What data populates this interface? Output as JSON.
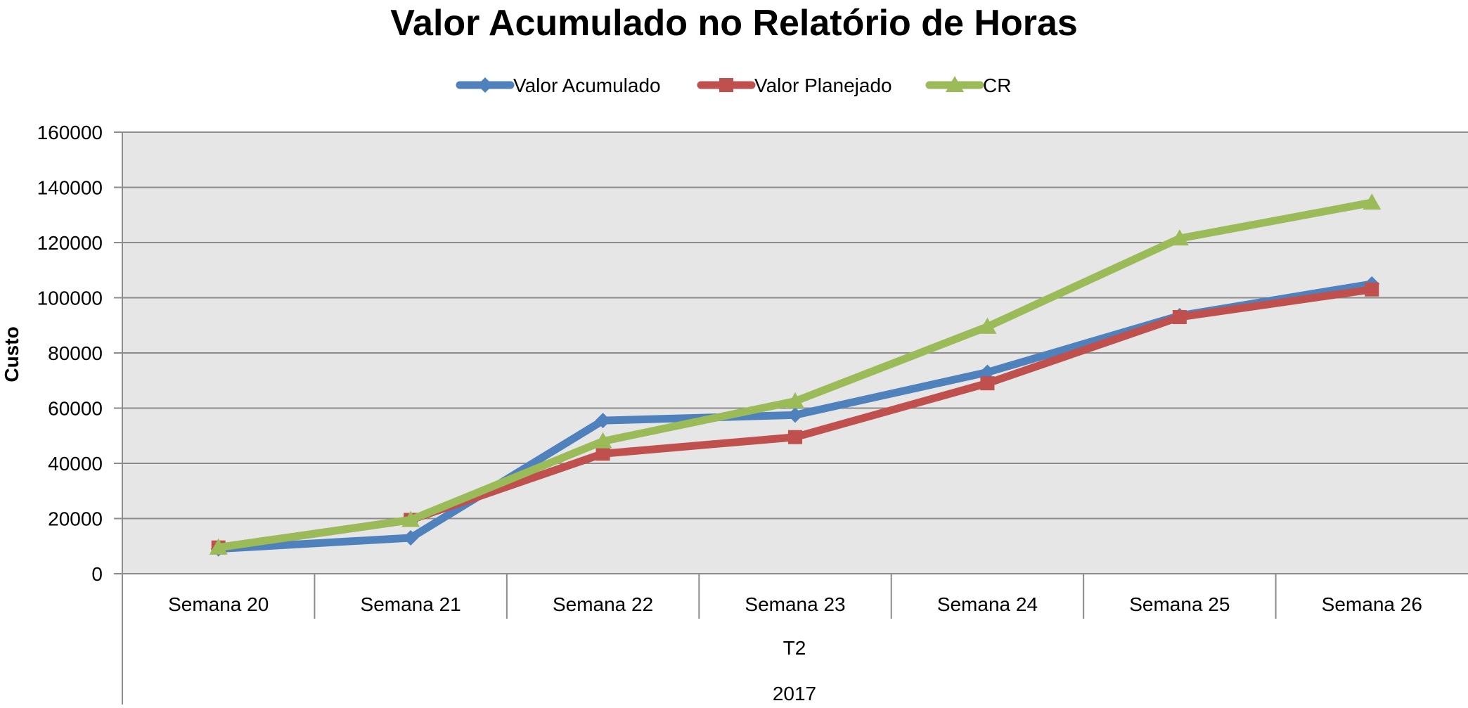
{
  "chart_data": {
    "type": "line",
    "title": "Valor Acumulado no Relatório de Horas",
    "xlabel": "",
    "ylabel": "Custo",
    "ylim": [
      0,
      160000
    ],
    "yticks": [
      "0",
      "20000",
      "40000",
      "60000",
      "80000",
      "100000",
      "120000",
      "140000",
      "160000"
    ],
    "grid": true,
    "legend_position": "top",
    "categories": [
      "Semana 20",
      "Semana 21",
      "Semana 22",
      "Semana 23",
      "Semana 24",
      "Semana 25",
      "Semana 26"
    ],
    "group_labels": {
      "quarter": "T2",
      "year": "2017"
    },
    "series": [
      {
        "name": "Valor Acumulado",
        "color": "#4f81bd",
        "marker": "diamond",
        "values": [
          9000,
          13000,
          55500,
          57500,
          73000,
          93500,
          105000
        ]
      },
      {
        "name": "Valor Planejado",
        "color": "#c0504d",
        "marker": "square",
        "values": [
          9500,
          19500,
          43500,
          49500,
          69000,
          93000,
          103000
        ]
      },
      {
        "name": "CR",
        "color": "#9bbb59",
        "marker": "triangle",
        "values": [
          9500,
          19500,
          48000,
          62500,
          89500,
          121500,
          134500
        ]
      }
    ],
    "colors": {
      "plot_background": "#e6e6e6",
      "gridline": "#8c8c8c"
    }
  }
}
